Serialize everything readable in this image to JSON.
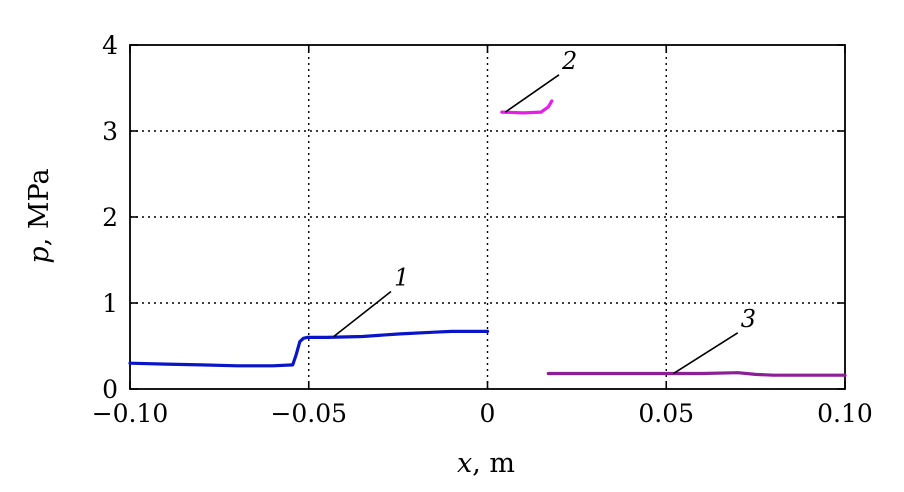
{
  "chart_data": {
    "type": "line",
    "xlabel": {
      "var": "x",
      "unit": ", m"
    },
    "ylabel": {
      "var": "p",
      "unit": ", MPa"
    },
    "xlim": [
      -0.1,
      0.1
    ],
    "ylim": [
      0,
      4
    ],
    "xticks": [
      -0.1,
      -0.05,
      0,
      0.05,
      0.1
    ],
    "xtick_labels": [
      "−0.10",
      "−0.05",
      "0",
      "0.05",
      "0.10"
    ],
    "yticks": [
      0,
      1,
      2,
      3,
      4
    ],
    "ytick_labels": [
      "0",
      "1",
      "2",
      "3",
      "4"
    ],
    "grid": "dotted, interior only",
    "series": [
      {
        "name": "1",
        "color": "#0a14c8",
        "x": [
          -0.1,
          -0.09,
          -0.08,
          -0.07,
          -0.06,
          -0.0545,
          -0.0535,
          -0.0525,
          -0.0515,
          -0.0505,
          -0.045,
          -0.035,
          -0.025,
          -0.015,
          -0.01,
          0.0
        ],
        "y": [
          0.3,
          0.29,
          0.28,
          0.27,
          0.27,
          0.28,
          0.4,
          0.55,
          0.59,
          0.6,
          0.6,
          0.61,
          0.64,
          0.66,
          0.67,
          0.67
        ]
      },
      {
        "name": "2",
        "color": "#e61ee6",
        "x": [
          0.004,
          0.01,
          0.015,
          0.017,
          0.018
        ],
        "y": [
          3.22,
          3.21,
          3.22,
          3.28,
          3.35
        ]
      },
      {
        "name": "3",
        "color": "#8c1e96",
        "x": [
          0.017,
          0.03,
          0.05,
          0.06,
          0.07,
          0.075,
          0.08,
          0.09,
          0.1
        ],
        "y": [
          0.18,
          0.18,
          0.18,
          0.18,
          0.19,
          0.17,
          0.16,
          0.16,
          0.16
        ]
      }
    ],
    "annotations": [
      {
        "text": "1",
        "series": "1",
        "at": [
          -0.043,
          0.61
        ],
        "label_at": [
          -0.027,
          1.18
        ]
      },
      {
        "text": "2",
        "series": "2",
        "at": [
          0.005,
          3.22
        ],
        "label_at": [
          0.02,
          3.7
        ]
      },
      {
        "text": "3",
        "series": "3",
        "at": [
          0.052,
          0.18
        ],
        "label_at": [
          0.07,
          0.7
        ]
      }
    ]
  }
}
